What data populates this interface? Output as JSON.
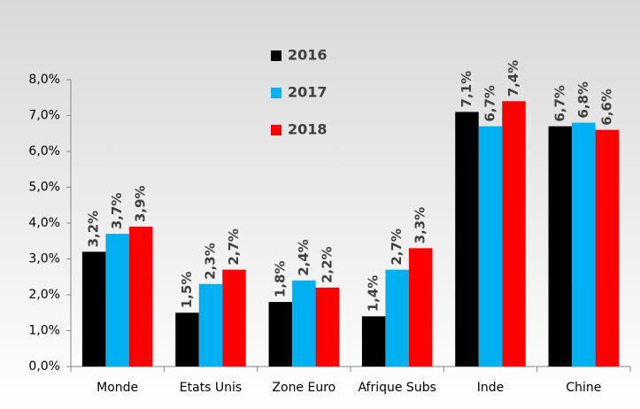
{
  "chart_data": {
    "type": "bar",
    "categories": [
      "Monde",
      "Etats Unis",
      "Zone Euro",
      "Afrique Subs",
      "Inde",
      "Chine"
    ],
    "series": [
      {
        "name": "2016",
        "color": "#000000",
        "values": [
          3.2,
          1.5,
          1.8,
          1.4,
          7.1,
          6.7
        ],
        "value_labels": [
          "3,2%",
          "1,5%",
          "1,8%",
          "1,4%",
          "7,1%",
          "6,7%"
        ]
      },
      {
        "name": "2017",
        "color": "#00b0f0",
        "values": [
          3.7,
          2.3,
          2.4,
          2.7,
          6.7,
          6.8
        ],
        "value_labels": [
          "3,7%",
          "2,3%",
          "2,4%",
          "2,7%",
          "6,7%",
          "6,8%"
        ]
      },
      {
        "name": "2018",
        "color": "#ff0000",
        "values": [
          3.9,
          2.7,
          2.2,
          3.3,
          7.4,
          6.6
        ],
        "value_labels": [
          "3,9%",
          "2,7%",
          "2,2%",
          "3,3%",
          "7,4%",
          "6,6%"
        ]
      }
    ],
    "ylim": [
      0,
      8
    ],
    "yticks": [
      {
        "value": 0,
        "label": "0,0%"
      },
      {
        "value": 1,
        "label": "1,0%"
      },
      {
        "value": 2,
        "label": "2,0%"
      },
      {
        "value": 3,
        "label": "3,0%"
      },
      {
        "value": 4,
        "label": "4,0%"
      },
      {
        "value": 5,
        "label": "5,0%"
      },
      {
        "value": 6,
        "label": "6,0%"
      },
      {
        "value": 7,
        "label": "7,0%"
      },
      {
        "value": 8,
        "label": "8,0%"
      }
    ],
    "grid": false,
    "legend": "top"
  }
}
